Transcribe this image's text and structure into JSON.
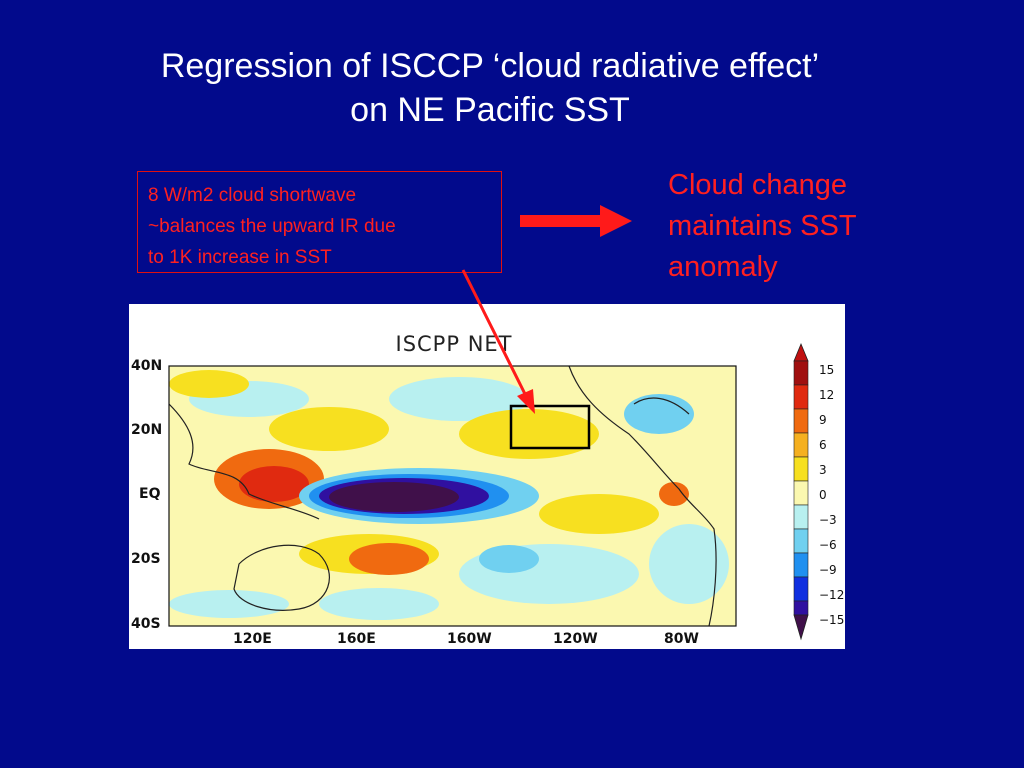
{
  "title": {
    "line1": "Regression of ISCCP ‘cloud radiative effect’",
    "line2": "on NE Pacific SST"
  },
  "callout": {
    "lines": [
      "8 W/m2 cloud shortwave",
      "~balances the upward IR due",
      "to 1K increase in SST"
    ]
  },
  "conclusion": {
    "lines": [
      "Cloud change",
      "maintains SST",
      "anomaly"
    ]
  },
  "map": {
    "title": "ISCPP NET",
    "lat_labels": [
      "40N",
      "20N",
      "EQ",
      "20S",
      "40S"
    ],
    "lon_labels": [
      "120E",
      "160E",
      "160W",
      "120W",
      "80W"
    ],
    "colorbar_labels": [
      "15",
      "12",
      "9",
      "6",
      "3",
      "0",
      "−3",
      "−6",
      "−9",
      "−12",
      "−15"
    ],
    "colorbar_colors": [
      "#a01010",
      "#e02a10",
      "#f06a10",
      "#f5b020",
      "#f7e020",
      "#fbf8b0",
      "#b8f0f0",
      "#70d0f0",
      "#2090f0",
      "#1030e0",
      "#3010a0",
      "#40104a"
    ]
  },
  "colors": {
    "background": "#020a8c",
    "title_text": "#ffffff",
    "accent_red": "#ff2020"
  }
}
